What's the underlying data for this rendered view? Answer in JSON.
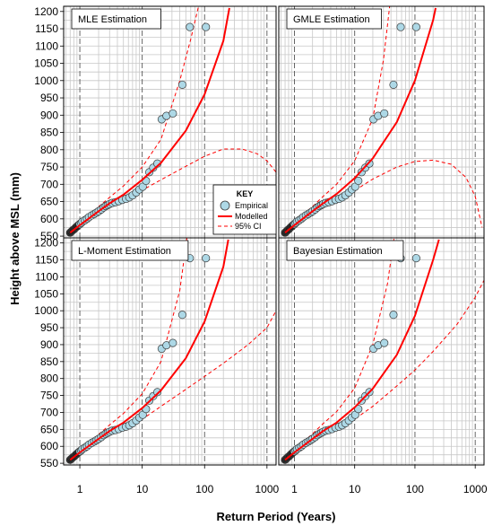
{
  "figure": {
    "xlabel": "Return Period (Years)",
    "ylabel": "Height above MSL (mm)"
  },
  "legend": {
    "title": "KEY",
    "empirical": "Empirical",
    "modelled": "Modelled",
    "ci": "95% CI"
  },
  "colors": {
    "point_fill": "#add8e6",
    "point_edge": "#3a3a3a",
    "model": "#ff0000",
    "grid": "#c8c8c8",
    "decade_line": "#000000"
  },
  "chart_data": [
    {
      "type": "scatter",
      "title": "MLE Estimation",
      "xscale": "log",
      "xlim": [
        0.55,
        1400
      ],
      "ylim": [
        545,
        1215
      ],
      "xticks": [
        "1",
        "10",
        "100",
        "1000"
      ],
      "yticks": [
        "550",
        "600",
        "650",
        "700",
        "750",
        "800",
        "850",
        "900",
        "950",
        "1000",
        "1050",
        "1100",
        "1150",
        "1200"
      ],
      "empirical": {
        "x": [
          0.7,
          0.72,
          0.75,
          0.78,
          0.82,
          0.86,
          0.9,
          0.95,
          1.0,
          1.05,
          1.1,
          1.2,
          1.3,
          1.4,
          1.55,
          1.7,
          1.85,
          2.0,
          2.2,
          2.4,
          2.6,
          2.8,
          3.0,
          3.3,
          3.7,
          4.2,
          4.8,
          5.5,
          6.2,
          7.0,
          8.0,
          9.0,
          10.2,
          11.5,
          13.0,
          15.0,
          17.5,
          20.5,
          24.5,
          31.0,
          44.0,
          58.0,
          105.0
        ],
        "y": [
          560,
          562,
          565,
          568,
          571,
          575,
          578,
          582,
          585,
          588,
          592,
          596,
          600,
          605,
          610,
          614,
          618,
          622,
          627,
          633,
          637,
          640,
          643,
          646,
          648,
          651,
          655,
          658,
          662,
          668,
          676,
          685,
          693,
          710,
          735,
          748,
          760,
          888,
          898,
          905,
          988,
          1155,
          1155
        ]
      },
      "modelled": {
        "x": [
          0.7,
          1,
          2,
          3,
          5,
          10,
          20,
          50,
          100,
          200,
          250
        ],
        "y": [
          560,
          582,
          622,
          645,
          670,
          713,
          762,
          855,
          960,
          1115,
          1210
        ]
      },
      "ci_upper": {
        "x": [
          0.7,
          1,
          2,
          3,
          5,
          10,
          20,
          40,
          60,
          80
        ],
        "y": [
          562,
          590,
          635,
          662,
          695,
          750,
          830,
          1000,
          1120,
          1215
        ]
      },
      "ci_lower": {
        "x": [
          0.7,
          1,
          2,
          3,
          5,
          10,
          20,
          50,
          100,
          200,
          400,
          700,
          1000,
          1400
        ],
        "y": [
          560,
          578,
          612,
          632,
          652,
          683,
          713,
          752,
          781,
          802,
          802,
          788,
          768,
          735
        ]
      }
    },
    {
      "type": "scatter",
      "title": "GMLE Estimation",
      "xscale": "log",
      "xlim": [
        0.55,
        1400
      ],
      "ylim": [
        545,
        1215
      ],
      "xticks": [
        "1",
        "10",
        "100",
        "1000"
      ],
      "yticks": [
        "550",
        "600",
        "650",
        "700",
        "750",
        "800",
        "850",
        "900",
        "950",
        "1000",
        "1050",
        "1100",
        "1150",
        "1200"
      ],
      "empirical": {
        "x": [
          0.7,
          0.72,
          0.75,
          0.78,
          0.82,
          0.86,
          0.9,
          0.95,
          1.0,
          1.05,
          1.1,
          1.2,
          1.3,
          1.4,
          1.55,
          1.7,
          1.85,
          2.0,
          2.2,
          2.4,
          2.6,
          2.8,
          3.0,
          3.3,
          3.7,
          4.2,
          4.8,
          5.5,
          6.2,
          7.0,
          8.0,
          9.0,
          10.2,
          11.5,
          13.0,
          15.0,
          17.5,
          20.5,
          24.5,
          31.0,
          44.0,
          58.0,
          105.0
        ],
        "y": [
          560,
          562,
          565,
          568,
          571,
          575,
          578,
          582,
          585,
          588,
          592,
          596,
          600,
          605,
          610,
          614,
          618,
          622,
          627,
          633,
          637,
          640,
          643,
          646,
          648,
          651,
          655,
          658,
          662,
          668,
          676,
          685,
          693,
          710,
          735,
          748,
          760,
          888,
          898,
          905,
          988,
          1155,
          1155
        ]
      },
      "modelled": {
        "x": [
          0.7,
          1,
          2,
          3,
          5,
          10,
          20,
          50,
          100,
          200,
          220
        ],
        "y": [
          560,
          582,
          622,
          645,
          672,
          718,
          775,
          880,
          1000,
          1175,
          1210
        ]
      },
      "ci_upper": {
        "x": [
          0.7,
          1,
          2,
          3,
          5,
          10,
          20,
          30,
          38
        ],
        "y": [
          562,
          590,
          636,
          665,
          700,
          768,
          890,
          1060,
          1215
        ]
      },
      "ci_lower": {
        "x": [
          0.7,
          1,
          2,
          3,
          5,
          10,
          20,
          50,
          100,
          200,
          400,
          700,
          1000,
          1300
        ],
        "y": [
          560,
          578,
          612,
          632,
          652,
          682,
          715,
          750,
          766,
          770,
          758,
          720,
          665,
          575
        ]
      }
    },
    {
      "type": "scatter",
      "title": "L-Moment Estimation",
      "xscale": "log",
      "xlim": [
        0.55,
        1400
      ],
      "ylim": [
        545,
        1215
      ],
      "xticks": [
        "1",
        "10",
        "100",
        "1000"
      ],
      "yticks": [
        "550",
        "600",
        "650",
        "700",
        "750",
        "800",
        "850",
        "900",
        "950",
        "1000",
        "1050",
        "1100",
        "1150",
        "1200"
      ],
      "empirical": {
        "x": [
          0.7,
          0.72,
          0.75,
          0.78,
          0.82,
          0.86,
          0.9,
          0.95,
          1.0,
          1.05,
          1.1,
          1.2,
          1.3,
          1.4,
          1.55,
          1.7,
          1.85,
          2.0,
          2.2,
          2.4,
          2.6,
          2.8,
          3.0,
          3.3,
          3.7,
          4.2,
          4.8,
          5.5,
          6.2,
          7.0,
          8.0,
          9.0,
          10.2,
          11.5,
          13.0,
          15.0,
          17.5,
          20.5,
          24.5,
          31.0,
          44.0,
          58.0,
          105.0
        ],
        "y": [
          560,
          562,
          565,
          568,
          571,
          575,
          578,
          582,
          585,
          588,
          592,
          596,
          600,
          605,
          610,
          614,
          618,
          622,
          627,
          633,
          637,
          640,
          643,
          646,
          648,
          651,
          655,
          658,
          662,
          668,
          676,
          685,
          693,
          710,
          735,
          748,
          760,
          888,
          898,
          905,
          988,
          1155,
          1155
        ]
      },
      "modelled": {
        "x": [
          0.7,
          1,
          2,
          3,
          5,
          10,
          20,
          50,
          100,
          200,
          240
        ],
        "y": [
          560,
          582,
          622,
          645,
          670,
          713,
          765,
          860,
          968,
          1130,
          1210
        ]
      },
      "ci_upper": {
        "x": [
          0.7,
          1,
          2,
          3,
          5,
          10,
          20,
          40,
          52
        ],
        "y": [
          562,
          590,
          635,
          663,
          697,
          755,
          850,
          1060,
          1215
        ]
      },
      "ci_lower": {
        "x": [
          0.7,
          1,
          2,
          3,
          5,
          10,
          20,
          50,
          100,
          200,
          500,
          1000,
          1400
        ],
        "y": [
          560,
          578,
          612,
          632,
          652,
          680,
          718,
          768,
          806,
          845,
          900,
          950,
          1000
        ]
      }
    },
    {
      "type": "scatter",
      "title": "Bayesian Estimation",
      "xscale": "log",
      "xlim": [
        0.55,
        1400
      ],
      "ylim": [
        545,
        1215
      ],
      "xticks": [
        "1",
        "10",
        "100",
        "1000"
      ],
      "yticks": [
        "550",
        "600",
        "650",
        "700",
        "750",
        "800",
        "850",
        "900",
        "950",
        "1000",
        "1050",
        "1100",
        "1150",
        "1200"
      ],
      "empirical": {
        "x": [
          0.7,
          0.72,
          0.75,
          0.78,
          0.82,
          0.86,
          0.9,
          0.95,
          1.0,
          1.05,
          1.1,
          1.2,
          1.3,
          1.4,
          1.55,
          1.7,
          1.85,
          2.0,
          2.2,
          2.4,
          2.6,
          2.8,
          3.0,
          3.3,
          3.7,
          4.2,
          4.8,
          5.5,
          6.2,
          7.0,
          8.0,
          9.0,
          10.2,
          11.5,
          13.0,
          15.0,
          17.5,
          20.5,
          24.5,
          31.0,
          44.0,
          58.0,
          105.0
        ],
        "y": [
          560,
          562,
          565,
          568,
          571,
          575,
          578,
          582,
          585,
          588,
          592,
          596,
          600,
          605,
          610,
          614,
          618,
          622,
          627,
          633,
          637,
          640,
          643,
          646,
          648,
          651,
          655,
          658,
          662,
          668,
          676,
          685,
          693,
          710,
          735,
          748,
          760,
          888,
          898,
          905,
          988,
          1155,
          1155
        ]
      },
      "modelled": {
        "x": [
          0.7,
          1,
          2,
          3,
          5,
          10,
          20,
          50,
          100,
          200,
          250
        ],
        "y": [
          560,
          582,
          622,
          645,
          670,
          715,
          770,
          870,
          985,
          1150,
          1210
        ]
      },
      "ci_upper": {
        "x": [
          0.7,
          1,
          2,
          3,
          5,
          10,
          20,
          35,
          45
        ],
        "y": [
          562,
          590,
          637,
          667,
          702,
          772,
          900,
          1080,
          1215
        ]
      },
      "ci_lower": {
        "x": [
          0.7,
          1,
          2,
          3,
          5,
          10,
          20,
          50,
          100,
          200,
          500,
          1000,
          1400
        ],
        "y": [
          560,
          578,
          612,
          632,
          652,
          680,
          718,
          778,
          825,
          880,
          960,
          1040,
          1090
        ]
      }
    }
  ]
}
